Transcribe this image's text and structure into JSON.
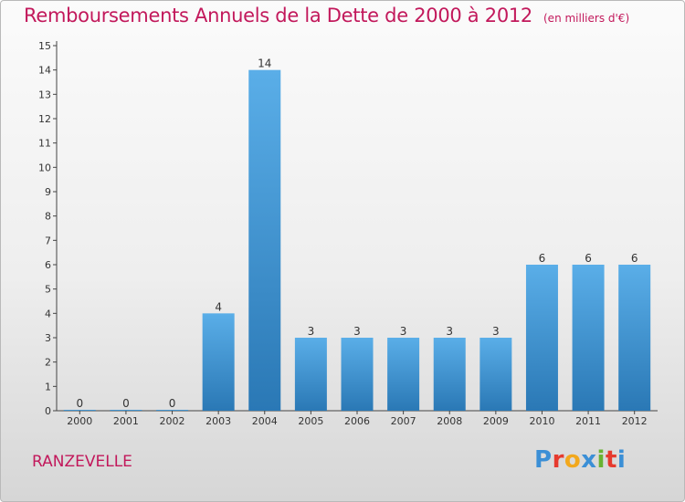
{
  "header": {
    "title": "Remboursements Annuels de la Dette de 2000 à 2012",
    "unit": "(en milliers d'€)"
  },
  "footer": {
    "commune": "RANZEVELLE",
    "logo": [
      "P",
      "r",
      "o",
      "x",
      "i",
      "t",
      "i"
    ]
  },
  "colors": {
    "title": "#c2185b",
    "bar_top": "#5aaee8",
    "bar_bottom": "#2a78b5",
    "logo": [
      "#3b8fd6",
      "#e63a2e",
      "#f2a81d",
      "#3b8fd6",
      "#69b232",
      "#e63a2e",
      "#3b8fd6"
    ]
  },
  "chart_data": {
    "type": "bar",
    "categories": [
      "2000",
      "2001",
      "2002",
      "2003",
      "2004",
      "2005",
      "2006",
      "2007",
      "2008",
      "2009",
      "2010",
      "2011",
      "2012"
    ],
    "values": [
      0,
      0,
      0,
      4,
      14,
      3,
      3,
      3,
      3,
      3,
      6,
      6,
      6
    ],
    "data_labels": [
      "0",
      "0",
      "0",
      "4",
      "14",
      "3",
      "3",
      "3",
      "3",
      "3",
      "6",
      "6",
      "6"
    ],
    "yticks": [
      0,
      1,
      2,
      3,
      4,
      5,
      6,
      7,
      8,
      9,
      10,
      11,
      12,
      13,
      14,
      15
    ],
    "ylim": [
      0,
      15
    ],
    "grid": false,
    "legend": "none"
  }
}
